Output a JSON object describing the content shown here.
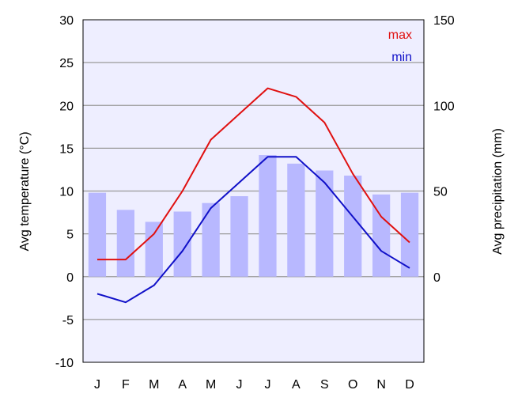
{
  "chart_data": {
    "type": "bar",
    "categories": [
      "J",
      "F",
      "M",
      "A",
      "M",
      "J",
      "J",
      "A",
      "S",
      "O",
      "N",
      "D"
    ],
    "series": [
      {
        "name": "max",
        "type": "line",
        "axis": "left",
        "color": "#e01010",
        "values": [
          2,
          2,
          5,
          10,
          16,
          19,
          22,
          21,
          18,
          12,
          7,
          4
        ]
      },
      {
        "name": "min",
        "type": "line",
        "axis": "left",
        "color": "#1010c8",
        "values": [
          -2,
          -3,
          -1,
          3,
          8,
          11,
          14,
          14,
          11,
          7,
          3,
          1
        ]
      },
      {
        "type": "bar",
        "axis": "right",
        "color": "#b8b8ff",
        "values": [
          49,
          39,
          32,
          38,
          43,
          47,
          71,
          66,
          62,
          59,
          48,
          49
        ]
      }
    ],
    "ylabel": "Avg temperature (°C)",
    "y2label": "Avg precipitation (mm)",
    "ylim": [
      -10,
      30
    ],
    "y2lim": [
      -50,
      150
    ],
    "yticks": [
      "-10",
      "-5",
      "0",
      "5",
      "10",
      "15",
      "20",
      "25",
      "30"
    ],
    "y2ticks": [
      "0",
      "50",
      "100",
      "150"
    ],
    "grid": true,
    "legend_position": "top-right",
    "plot_background": "#eeeeff",
    "grid_color": "#999999"
  }
}
